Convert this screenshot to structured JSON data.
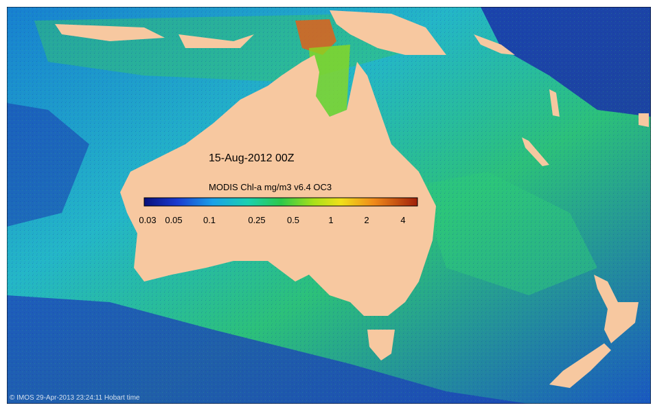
{
  "map": {
    "date_title": "15-Aug-2012 00Z",
    "colorbar_label": "MODIS Chl-a mg/m3 v6.4 OC3",
    "colorbar_ticks": [
      "0.03",
      "0.05",
      "0.1",
      "0.25",
      "0.5",
      "1",
      "2",
      "4"
    ],
    "credit": "© IMOS 29-Apr-2013 23:24:11 Hobart time",
    "colors": {
      "land": "#f7c8a0",
      "ocean_deep": "#1a2fa8",
      "ocean_mid": "#1aa0d8",
      "ocean_green": "#2fc87a",
      "coastal_high": "#e0601a"
    }
  }
}
